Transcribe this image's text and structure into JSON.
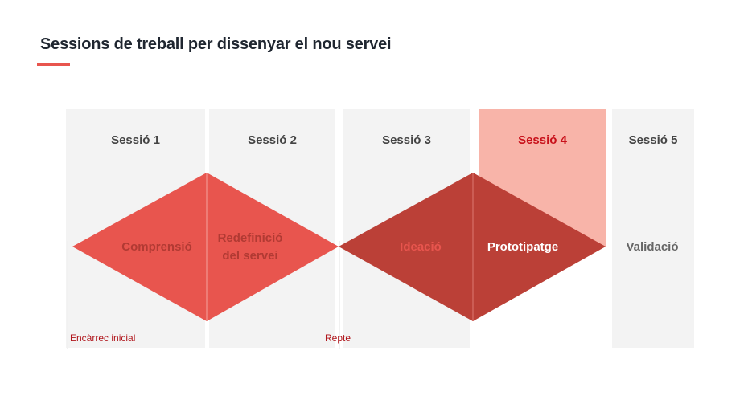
{
  "header": {
    "title": "Sessions de treball per dissenyar el nou servei"
  },
  "sessions": [
    {
      "label": "Sessió 1",
      "active": false
    },
    {
      "label": "Sessió 2",
      "active": false
    },
    {
      "label": "Sessió 3",
      "active": false
    },
    {
      "label": "Sessió 4",
      "active": true
    },
    {
      "label": "Sessió 5",
      "active": false
    }
  ],
  "stages": {
    "comprensio": "Comprensió",
    "redefinicio_line1": "Redefinició",
    "redefinicio_line2": "del servei",
    "ideacio": "Ideació",
    "prototipatge": "Prototipatge",
    "validacio": "Validació"
  },
  "markers": {
    "start": "Encàrrec inicial",
    "middle": "Repte"
  },
  "colors": {
    "diamond_light": "#e8554e",
    "diamond_dark": "#bb4037",
    "column_bg": "#f3f3f3",
    "column_highlight": "#f8b4a9",
    "accent_text": "#c8101a",
    "title_underline": "#e8554e"
  }
}
